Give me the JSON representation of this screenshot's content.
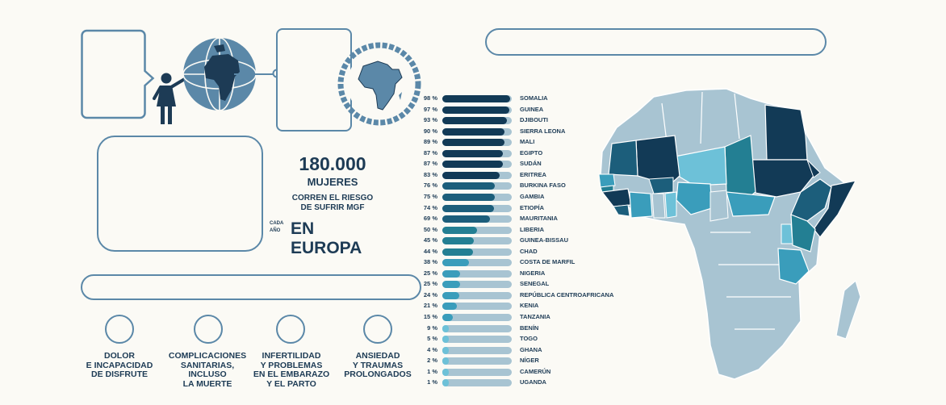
{
  "stat": {
    "number": "180.000",
    "label": "MUJERES",
    "line1": "CORREN EL RIESGO",
    "line2": "DE SUFRIR MGF",
    "small1": "CADA",
    "small2": "AÑO",
    "place": "EN EUROPA"
  },
  "consequences": [
    {
      "line1": "DOLOR",
      "line2": "E INCAPACIDAD",
      "line3": "DE DISFRUTE",
      "line4": ""
    },
    {
      "line1": "COMPLICACIONES",
      "line2": "SANITARIAS,",
      "line3": "INCLUSO",
      "line4": "LA MUERTE"
    },
    {
      "line1": "INFERTILIDAD",
      "line2": "Y PROBLEMAS",
      "line3": "EN EL EMBARAZO",
      "line4": "Y EL PARTO"
    },
    {
      "line1": "ANSIEDAD",
      "line2": "Y TRAUMAS",
      "line3": "PROLONGADOS",
      "line4": ""
    }
  ],
  "colors": {
    "dark": "#123a56",
    "mid_dark": "#1c5e7b",
    "teal": "#237f93",
    "mid": "#3a9dbb",
    "light": "#6dc1d8",
    "pale": "#a8c4d2",
    "outline": "#5b88a8"
  },
  "icons": [
    "globe-icon",
    "woman-icon",
    "africa-icon",
    "africa-map"
  ],
  "chart_data": {
    "type": "bar",
    "categories": [
      "SOMALIA",
      "GUINEA",
      "DJIBOUTI",
      "SIERRA LEONA",
      "MALI",
      "EGIPTO",
      "SUDÁN",
      "ERITREA",
      "BURKINA FASO",
      "GAMBIA",
      "ETIOPÍA",
      "MAURITANIA",
      "LIBERIA",
      "GUINEA-BISSAU",
      "CHAD",
      "COSTA DE MARFIL",
      "NIGERIA",
      "SENEGAL",
      "REPÚBLICA CENTROAFRICANA",
      "KENIA",
      "TANZANIA",
      "BENÍN",
      "TOGO",
      "GHANA",
      "NÍGER",
      "CAMERÚN",
      "UGANDA"
    ],
    "values": [
      98,
      97,
      93,
      90,
      89,
      87,
      87,
      83,
      76,
      75,
      74,
      69,
      50,
      45,
      44,
      38,
      25,
      25,
      24,
      21,
      15,
      9,
      5,
      4,
      2,
      1,
      1
    ],
    "labels": [
      "98 %",
      "97 %",
      "93 %",
      "90 %",
      "89 %",
      "87 %",
      "87 %",
      "83 %",
      "76 %",
      "75 %",
      "74 %",
      "69 %",
      "50 %",
      "45 %",
      "44 %",
      "38 %",
      "25 %",
      "25 %",
      "24 %",
      "21 %",
      "15 %",
      "9 %",
      "5 %",
      "4 %",
      "2 %",
      "1 %",
      "1 %"
    ],
    "xlim": [
      0,
      100
    ]
  }
}
